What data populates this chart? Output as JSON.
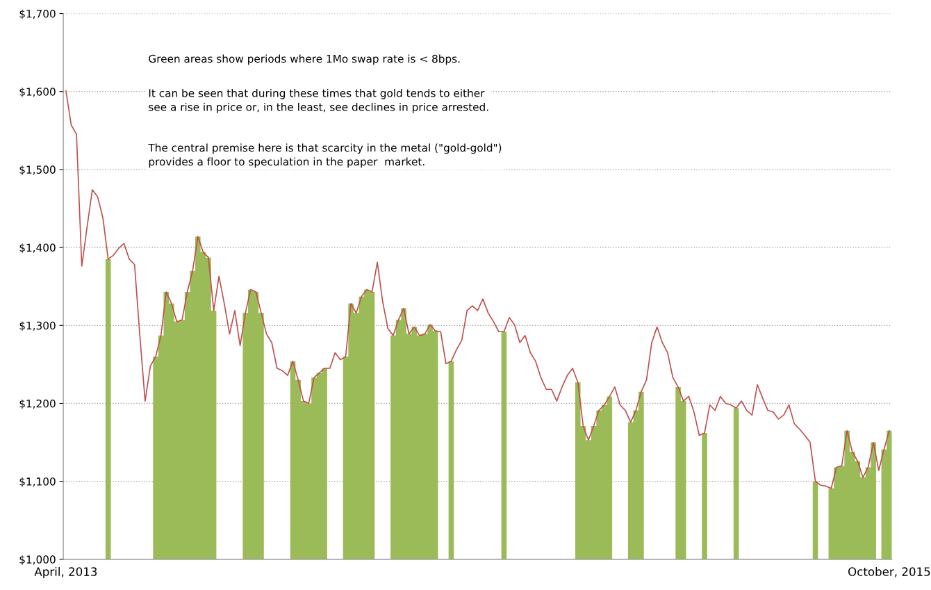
{
  "chart_data": {
    "type": "line",
    "categories": [
      "April, 2013",
      null,
      null,
      null,
      null,
      null,
      null,
      null,
      null,
      null,
      null,
      null,
      null,
      null,
      null,
      null,
      null,
      null,
      null,
      null,
      null,
      null,
      null,
      null,
      null,
      null,
      null,
      null,
      null,
      null,
      null,
      null,
      null,
      null,
      null,
      null,
      null,
      null,
      null,
      null,
      null,
      null,
      null,
      null,
      null,
      null,
      null,
      null,
      null,
      null,
      null,
      null,
      null,
      null,
      null,
      null,
      null,
      null,
      null,
      null,
      null,
      null,
      null,
      null,
      null,
      null,
      null,
      null,
      null,
      null,
      null,
      null,
      null,
      null,
      null,
      null,
      null,
      null,
      null,
      null,
      null,
      null,
      null,
      null,
      null,
      null,
      null,
      null,
      null,
      null,
      null,
      null,
      null,
      null,
      null,
      null,
      null,
      null,
      null,
      null,
      null,
      null,
      null,
      null,
      null,
      null,
      null,
      null,
      null,
      null,
      null,
      null,
      null,
      null,
      null,
      null,
      null,
      null,
      null,
      null,
      null,
      null,
      null,
      null,
      null,
      null,
      null,
      null,
      null,
      null,
      null,
      null,
      null,
      null,
      null,
      null,
      null,
      null,
      null,
      null,
      null,
      null,
      null,
      null,
      null,
      null,
      null,
      null,
      null,
      null,
      null,
      null,
      null,
      null,
      null,
      null,
      "October, 2015"
    ],
    "series": [
      {
        "type": "area",
        "color": "#9bbb59",
        "values": [
          null,
          null,
          null,
          null,
          null,
          null,
          null,
          null,
          1385,
          null,
          null,
          null,
          null,
          null,
          null,
          null,
          null,
          1260,
          1287,
          1343,
          1328,
          1305,
          1307,
          1343,
          1370,
          1414,
          1394,
          1387,
          1319,
          null,
          null,
          null,
          null,
          null,
          1316,
          1346,
          1343,
          1316,
          null,
          null,
          null,
          null,
          null,
          1254,
          1230,
          1203,
          1200,
          1233,
          1239,
          1245,
          null,
          null,
          null,
          1260,
          1328,
          1316,
          1337,
          1346,
          1343,
          null,
          null,
          null,
          1287,
          1307,
          1322,
          1289,
          1298,
          1287,
          1289,
          1301,
          1293,
          null,
          null,
          1254,
          null,
          null,
          null,
          null,
          null,
          null,
          null,
          null,
          null,
          1292,
          null,
          null,
          null,
          null,
          null,
          null,
          null,
          null,
          null,
          null,
          null,
          null,
          null,
          1227,
          1171,
          1153,
          1171,
          1191,
          1198,
          1209,
          null,
          null,
          null,
          1176,
          1191,
          1215,
          null,
          null,
          null,
          null,
          null,
          null,
          1221,
          1203,
          null,
          null,
          null,
          1162,
          null,
          null,
          null,
          null,
          null,
          1194,
          null,
          null,
          null,
          null,
          null,
          null,
          null,
          null,
          null,
          null,
          null,
          null,
          null,
          null,
          1100,
          null,
          null,
          1091,
          1118,
          1120,
          1165,
          1138,
          1126,
          1105,
          1118,
          1150,
          null,
          1141,
          1165
        ]
      },
      {
        "color": "#c0504d",
        "values": [
          1601,
          1557,
          1545,
          1376,
          1426,
          1474,
          1465,
          1438,
          1385,
          1390,
          1399,
          1405,
          1385,
          1378,
          1287,
          1203,
          1248,
          1260,
          1287,
          1343,
          1328,
          1305,
          1307,
          1343,
          1370,
          1414,
          1394,
          1387,
          1319,
          1363,
          1328,
          1289,
          1319,
          1274,
          1316,
          1346,
          1343,
          1316,
          1289,
          1278,
          1245,
          1242,
          1236,
          1254,
          1230,
          1203,
          1200,
          1233,
          1239,
          1245,
          1245,
          1265,
          1256,
          1260,
          1328,
          1316,
          1337,
          1346,
          1343,
          1381,
          1331,
          1296,
          1287,
          1307,
          1322,
          1289,
          1298,
          1287,
          1289,
          1301,
          1293,
          1292,
          1251,
          1254,
          1269,
          1281,
          1319,
          1325,
          1319,
          1334,
          1316,
          1305,
          1292,
          1292,
          1310,
          1301,
          1278,
          1287,
          1265,
          1254,
          1233,
          1218,
          1218,
          1203,
          1221,
          1236,
          1245,
          1227,
          1171,
          1153,
          1171,
          1191,
          1198,
          1209,
          1221,
          1198,
          1191,
          1176,
          1191,
          1215,
          1230,
          1278,
          1298,
          1278,
          1265,
          1233,
          1221,
          1203,
          1209,
          1189,
          1159,
          1162,
          1198,
          1191,
          1209,
          1200,
          1198,
          1194,
          1203,
          1191,
          1185,
          1224,
          1207,
          1191,
          1189,
          1180,
          1185,
          1198,
          1174,
          1167,
          1159,
          1150,
          1100,
          1095,
          1094,
          1091,
          1118,
          1120,
          1165,
          1138,
          1126,
          1105,
          1118,
          1150,
          1114,
          1141,
          1165
        ]
      }
    ],
    "ylim": [
      1000,
      1700
    ],
    "yticks": [
      {
        "value": 1000,
        "label": "$1,000"
      },
      {
        "value": 1100,
        "label": "$1,100"
      },
      {
        "value": 1200,
        "label": "$1,200"
      },
      {
        "value": 1300,
        "label": "$1,300"
      },
      {
        "value": 1400,
        "label": "$1,400"
      },
      {
        "value": 1500,
        "label": "$1,500"
      },
      {
        "value": 1600,
        "label": "$1,600"
      },
      {
        "value": 1700,
        "label": "$1,700"
      }
    ],
    "grid": "y",
    "annotations": [
      "Green areas show periods where 1Mo swap rate is < 8bps.",
      "It can be seen that during these times that gold tends to either\nsee a rise in price or, in the least, see declines in price arrested.",
      "The central premise here is that scarcity in the metal (\"gold-gold\")\nprovides a floor to speculation in the paper  market."
    ]
  }
}
